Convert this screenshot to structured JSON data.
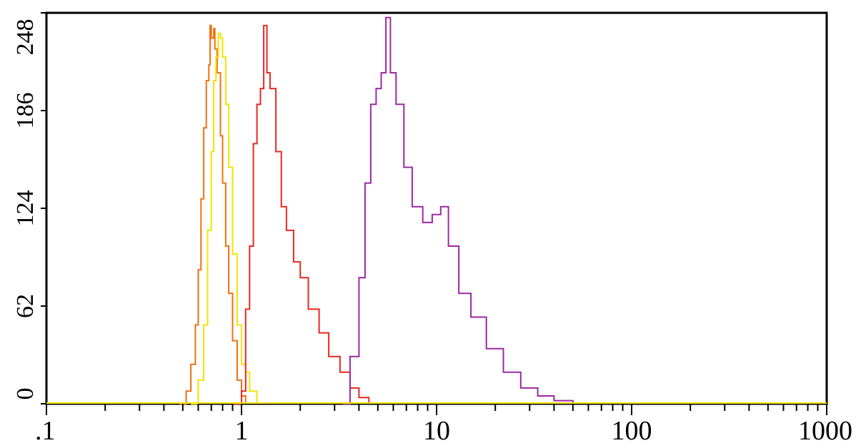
{
  "chart_data": {
    "type": "line",
    "title": "",
    "xlabel": "",
    "ylabel": "",
    "x_scale": "log",
    "xlim": [
      0.1,
      1000
    ],
    "ylim": [
      0,
      248
    ],
    "x_tick_values": [
      0.1,
      1,
      10,
      100,
      1000
    ],
    "x_tick_labels": [
      ".1",
      "1",
      "10",
      "100",
      "1000"
    ],
    "y_tick_values": [
      0,
      62,
      124,
      186,
      248
    ],
    "y_tick_labels": [
      "0",
      "62",
      "124",
      "186",
      "248"
    ],
    "grid": false,
    "legend": "none",
    "series": [
      {
        "color": "#f07010",
        "x": [
          0.48,
          0.52,
          0.55,
          0.58,
          0.6,
          0.62,
          0.64,
          0.66,
          0.68,
          0.69,
          0.7,
          0.72,
          0.73,
          0.75,
          0.78,
          0.8,
          0.83,
          0.86,
          0.9,
          0.95,
          1.0,
          1.05
        ],
        "y": [
          0,
          8,
          25,
          50,
          85,
          130,
          175,
          205,
          215,
          240,
          232,
          238,
          225,
          210,
          170,
          140,
          100,
          70,
          40,
          15,
          5,
          0
        ]
      },
      {
        "color": "#f2e400",
        "x": [
          0.55,
          0.6,
          0.64,
          0.67,
          0.7,
          0.72,
          0.74,
          0.76,
          0.78,
          0.8,
          0.83,
          0.86,
          0.9,
          0.95,
          1.0,
          1.05,
          1.1,
          1.2
        ],
        "y": [
          0,
          15,
          50,
          110,
          160,
          205,
          220,
          235,
          232,
          220,
          190,
          150,
          95,
          50,
          25,
          20,
          8,
          0
        ]
      },
      {
        "color": "#e82820",
        "x": [
          0.9,
          1.0,
          1.05,
          1.1,
          1.15,
          1.2,
          1.25,
          1.3,
          1.35,
          1.4,
          1.5,
          1.6,
          1.7,
          1.85,
          2.0,
          2.2,
          2.5,
          2.8,
          3.2,
          3.6,
          4.0,
          4.5
        ],
        "y": [
          0,
          8,
          60,
          100,
          165,
          190,
          200,
          240,
          210,
          200,
          160,
          125,
          110,
          90,
          80,
          60,
          45,
          30,
          20,
          10,
          4,
          0
        ]
      },
      {
        "color": "#9a2aa0",
        "x": [
          3.3,
          3.6,
          4.0,
          4.3,
          4.6,
          4.9,
          5.2,
          5.5,
          5.8,
          6.2,
          6.8,
          7.5,
          8.5,
          9.5,
          10.5,
          11.5,
          13,
          15,
          18,
          22,
          27,
          33,
          40,
          50
        ],
        "y": [
          0,
          30,
          80,
          140,
          190,
          200,
          210,
          245,
          210,
          190,
          150,
          125,
          115,
          120,
          125,
          100,
          70,
          55,
          35,
          20,
          10,
          5,
          2,
          0
        ]
      }
    ]
  }
}
